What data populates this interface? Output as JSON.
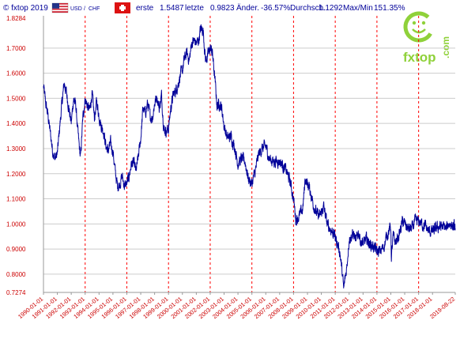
{
  "header": {
    "copyright": "© fxtop 2019",
    "pair_left": "USD",
    "pair_sep": "/",
    "pair_right": "CHF",
    "first_label": "erste",
    "first_value": "1.5487",
    "last_label": "letzte",
    "last_value": "0.9823",
    "change_label": "Änder.",
    "change_value": "-36.57%",
    "avg_label": "Durchsch.",
    "avg_value": "1.1292",
    "maxmin_label": "Max/Min",
    "maxmin_value": "151.35%"
  },
  "logo": {
    "text": "fxtop",
    "side_text": ".com"
  },
  "colors": {
    "series": "#000099",
    "axis": "#999999",
    "grid_h": "#cccccc",
    "grid_v": "#ff0000",
    "tick_text": "#cc0000",
    "header_text": "#000099",
    "logo_green": "#8fd13a"
  },
  "chart_data": {
    "type": "line",
    "ylim": [
      0.7274,
      1.8284
    ],
    "xlim": [
      "1990-01-01",
      "2019-08-22"
    ],
    "y_max_label": "1.8284",
    "y_min_label": "0.7274",
    "yticks": [
      "0.8000",
      "0.9000",
      "1.0000",
      "1.1000",
      "1.2000",
      "1.3000",
      "1.4000",
      "1.5000",
      "1.6000",
      "1.7000"
    ],
    "xticks": [
      "1990-01-01",
      "1991-01-01",
      "1992-01-01",
      "1993-01-01",
      "1994-01-01",
      "1995-01-01",
      "1996-01-01",
      "1997-01-01",
      "1998-01-01",
      "1999-01-01",
      "2000-01-01",
      "2001-01-01",
      "2002-01-01",
      "2003-01-01",
      "2004-01-01",
      "2005-01-01",
      "2006-01-01",
      "2007-01-01",
      "2008-01-01",
      "2009-01-01",
      "2010-01-01",
      "2011-01-01",
      "2012-01-01",
      "2013-01-01",
      "2014-01-01",
      "2015-01-01",
      "2016-01-01",
      "2017-01-01",
      "2018-01-01",
      "2019-08-22"
    ],
    "highlighted_xticks": [
      "1990-01-01",
      "1993-01-01",
      "1996-01-01",
      "1999-01-01",
      "2002-01-01",
      "2005-01-01",
      "2008-01-01",
      "2011-01-01",
      "2014-01-01",
      "2017-01-01"
    ],
    "series": [
      {
        "x": [
          "1990-01-01",
          "1990-03-01",
          "1990-05-01",
          "1990-07-01",
          "1990-09-01",
          "1990-11-01",
          "1991-01-01",
          "1991-03-01",
          "1991-05-01",
          "1991-07-01",
          "1991-09-01",
          "1991-11-01",
          "1992-01-01",
          "1992-03-01",
          "1992-05-01",
          "1992-07-01",
          "1992-09-01",
          "1992-11-01",
          "1993-01-01",
          "1993-03-01",
          "1993-05-01",
          "1993-07-01",
          "1993-09-01",
          "1993-11-01",
          "1994-01-01",
          "1994-03-01",
          "1994-05-01",
          "1994-07-01",
          "1994-09-01",
          "1994-11-01",
          "1995-01-01",
          "1995-03-01",
          "1995-05-01",
          "1995-07-01",
          "1995-09-01",
          "1995-11-01",
          "1996-01-01",
          "1996-03-01",
          "1996-05-01",
          "1996-07-01",
          "1996-09-01",
          "1996-11-01",
          "1997-01-01",
          "1997-03-01",
          "1997-05-01",
          "1997-07-01",
          "1997-09-01",
          "1997-11-01",
          "1998-01-01",
          "1998-03-01",
          "1998-05-01",
          "1998-07-01",
          "1998-09-01",
          "1998-11-01",
          "1999-01-01",
          "1999-03-01",
          "1999-05-01",
          "1999-07-01",
          "1999-09-01",
          "1999-11-01",
          "2000-01-01",
          "2000-03-01",
          "2000-05-01",
          "2000-07-01",
          "2000-09-01",
          "2000-11-01",
          "2001-01-01",
          "2001-03-01",
          "2001-05-01",
          "2001-07-01",
          "2001-09-01",
          "2001-11-01",
          "2002-01-01",
          "2002-03-01",
          "2002-05-01",
          "2002-07-01",
          "2002-09-01",
          "2002-11-01",
          "2003-01-01",
          "2003-04-01",
          "2003-07-01",
          "2003-10-01",
          "2004-01-01",
          "2004-04-01",
          "2004-07-01",
          "2004-10-01",
          "2005-01-01",
          "2005-04-01",
          "2005-07-01",
          "2005-10-01",
          "2006-01-01",
          "2006-04-01",
          "2006-07-01",
          "2006-10-01",
          "2007-01-01",
          "2007-04-01",
          "2007-07-01",
          "2007-10-01",
          "2008-01-01",
          "2008-03-01",
          "2008-06-01",
          "2008-09-01",
          "2008-11-01",
          "2009-01-01",
          "2009-03-01",
          "2009-06-01",
          "2009-09-01",
          "2009-12-01",
          "2010-03-01",
          "2010-06-01",
          "2010-09-01",
          "2010-12-01",
          "2011-03-01",
          "2011-05-01",
          "2011-07-01",
          "2011-08-10",
          "2011-09-15",
          "2011-11-01",
          "2012-01-01",
          "2012-03-01",
          "2012-05-01",
          "2012-07-01",
          "2012-09-01",
          "2012-11-01",
          "2013-01-01",
          "2013-04-01",
          "2013-07-01",
          "2013-10-01",
          "2014-01-01",
          "2014-04-01",
          "2014-07-01",
          "2014-10-01",
          "2015-01-01",
          "2015-01-16",
          "2015-03-01",
          "2015-05-01",
          "2015-07-01",
          "2015-09-01",
          "2015-11-01",
          "2016-01-01",
          "2016-04-01",
          "2016-07-01",
          "2016-10-01",
          "2017-01-01",
          "2017-04-01",
          "2017-07-01",
          "2017-10-01",
          "2018-01-01",
          "2018-04-01",
          "2018-07-01",
          "2018-10-01",
          "2019-01-01",
          "2019-03-01",
          "2019-05-01",
          "2019-07-01",
          "2019-08-22"
        ],
        "y": [
          1.5487,
          1.48,
          1.43,
          1.36,
          1.29,
          1.26,
          1.28,
          1.38,
          1.48,
          1.56,
          1.52,
          1.46,
          1.4,
          1.5,
          1.47,
          1.35,
          1.26,
          1.42,
          1.5,
          1.47,
          1.45,
          1.52,
          1.42,
          1.49,
          1.43,
          1.39,
          1.37,
          1.31,
          1.29,
          1.32,
          1.29,
          1.21,
          1.15,
          1.16,
          1.19,
          1.15,
          1.16,
          1.19,
          1.24,
          1.24,
          1.21,
          1.27,
          1.34,
          1.46,
          1.44,
          1.48,
          1.43,
          1.42,
          1.48,
          1.51,
          1.46,
          1.51,
          1.38,
          1.37,
          1.38,
          1.46,
          1.51,
          1.53,
          1.55,
          1.59,
          1.61,
          1.66,
          1.68,
          1.65,
          1.72,
          1.73,
          1.72,
          1.73,
          1.78,
          1.77,
          1.65,
          1.67,
          1.7,
          1.68,
          1.58,
          1.47,
          1.48,
          1.46,
          1.39,
          1.34,
          1.35,
          1.31,
          1.24,
          1.26,
          1.25,
          1.18,
          1.16,
          1.21,
          1.28,
          1.3,
          1.31,
          1.26,
          1.25,
          1.25,
          1.25,
          1.23,
          1.21,
          1.17,
          1.1,
          1.02,
          1.03,
          1.06,
          1.18,
          1.16,
          1.14,
          1.08,
          1.04,
          1.03,
          1.07,
          1.0,
          0.98,
          0.96,
          0.92,
          0.89,
          0.81,
          0.74,
          0.78,
          0.83,
          0.94,
          0.95,
          0.96,
          0.93,
          0.97,
          0.93,
          0.92,
          0.94,
          0.92,
          0.91,
          0.89,
          0.89,
          0.91,
          0.96,
          0.99,
          0.86,
          0.95,
          0.93,
          0.94,
          0.97,
          1.01,
          1.0,
          0.98,
          0.98,
          1.01,
          1.01,
          1.0,
          0.99,
          0.97,
          0.97,
          0.98,
          0.99,
          0.99,
          0.98,
          1.0,
          1.0,
          0.99,
          0.9823
        ]
      }
    ]
  }
}
